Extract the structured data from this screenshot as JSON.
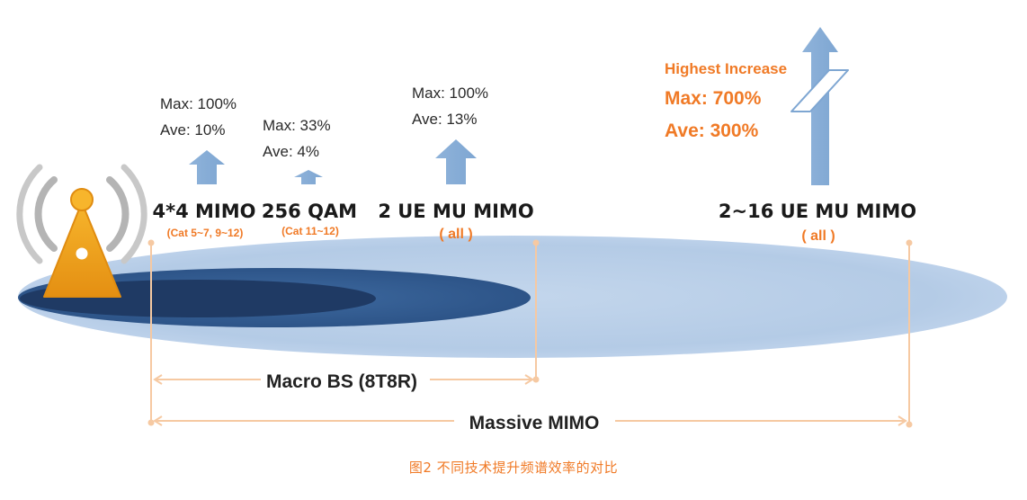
{
  "techs": {
    "t1": {
      "max": "Max: 100%",
      "ave": "Ave: 10%",
      "name": "4*4 MIMO",
      "note": "(Cat 5~7, 9~12)"
    },
    "t2": {
      "max": "Max: 33%",
      "ave": "Ave: 4%",
      "name": "256 QAM",
      "note": "(Cat 11~12)"
    },
    "t3": {
      "max": "Max: 100%",
      "ave": "Ave: 13%",
      "name": "2 UE MU MIMO",
      "note": "( all )"
    },
    "t4": {
      "header": "Highest Increase",
      "max": "Max: 700%",
      "ave": "Ave: 300%",
      "name": "2~16 UE MU MIMO",
      "note": "( all )"
    }
  },
  "ranges": {
    "macro": "Macro BS (8T8R)",
    "massive": "Massive MIMO"
  },
  "caption": "图2   不同技术提升频谱效率的对比",
  "icons": {
    "tower": "cell-tower-icon",
    "arrow": "up-arrow-icon"
  },
  "colors": {
    "accent": "#f07a26",
    "arrow": "#8eb2d8",
    "ellipse_light": "#b7cde6",
    "ellipse_mid": "#355e92",
    "ellipse_dark": "#203c66",
    "tower": "#f0a21a",
    "range_line": "#f6c9a2"
  }
}
